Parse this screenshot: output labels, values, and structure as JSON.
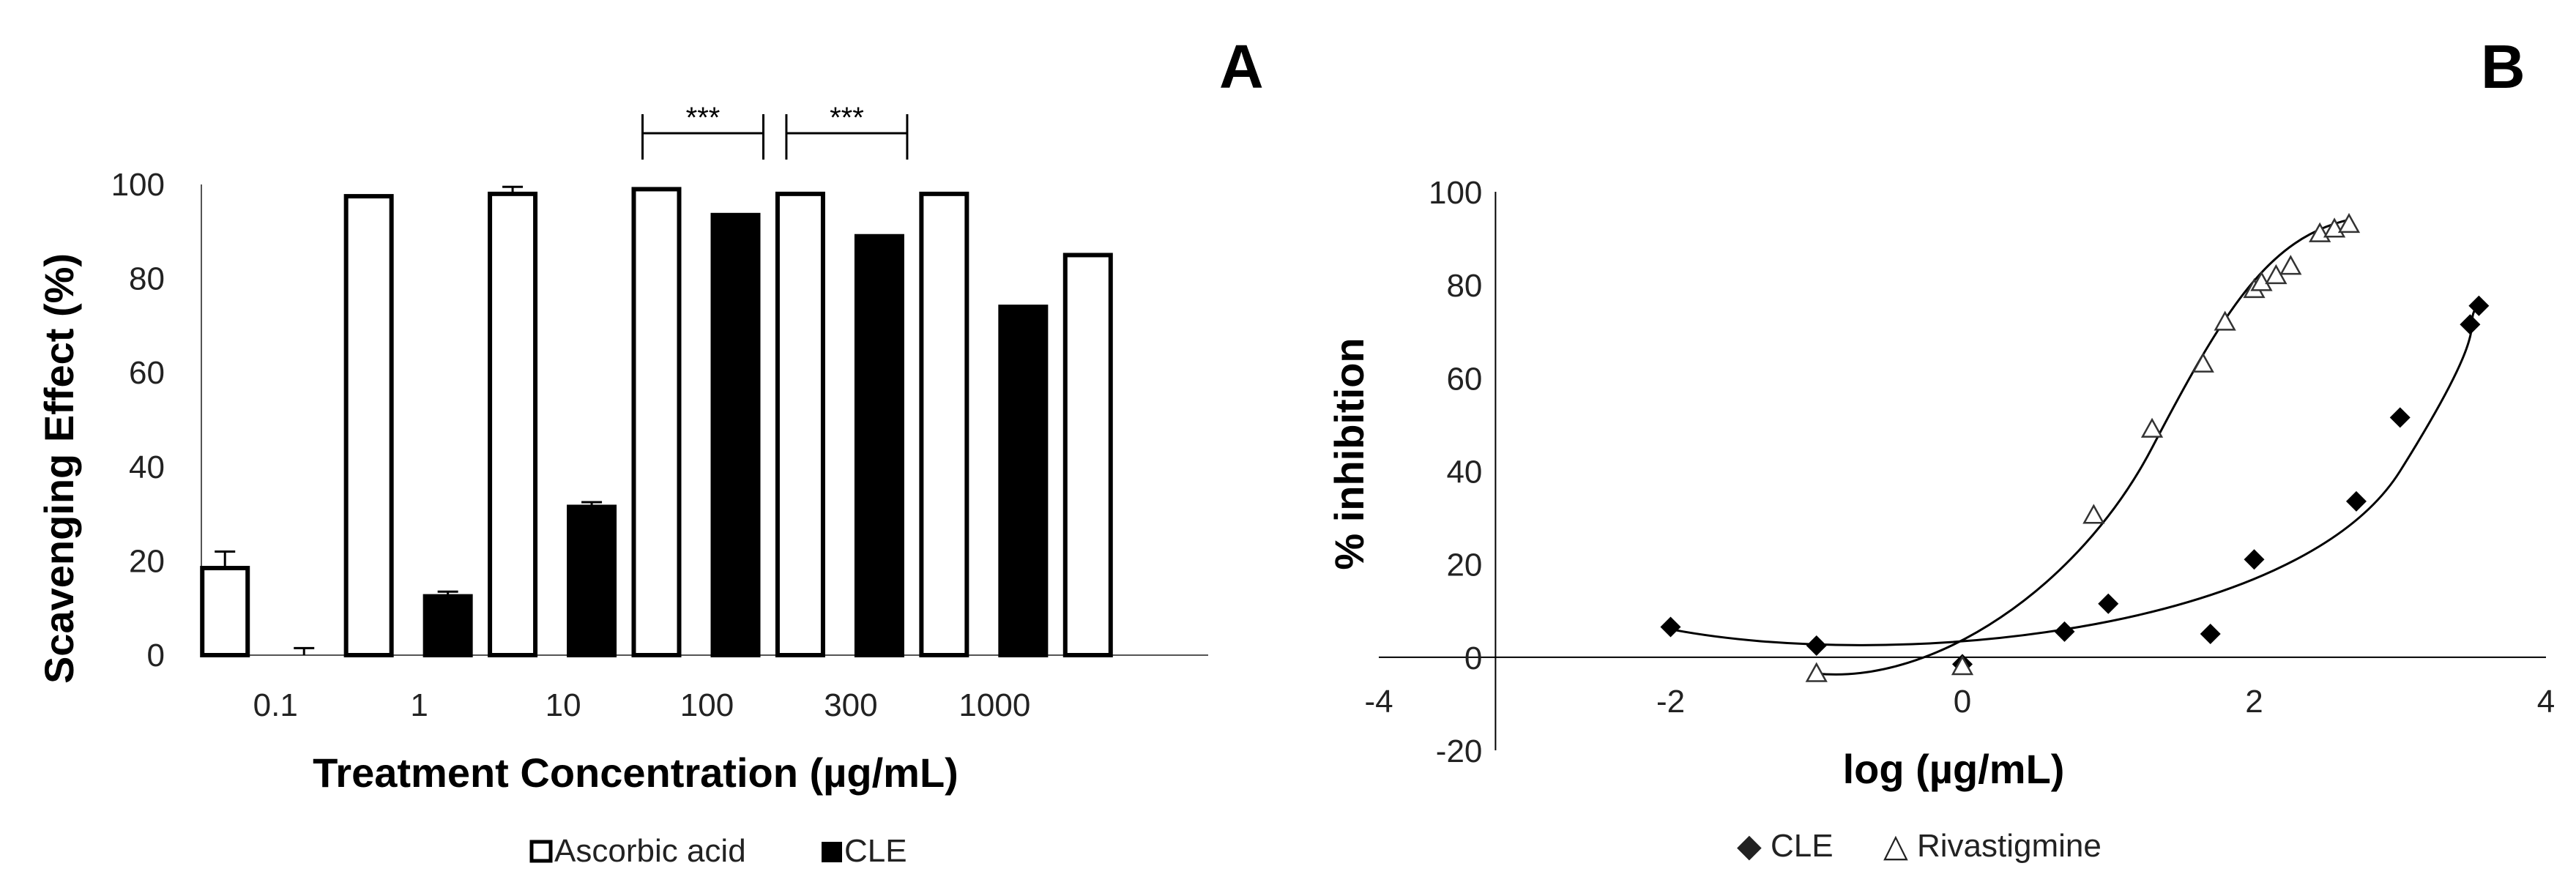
{
  "chart_data": [
    {
      "panel": "A",
      "type": "bar",
      "title": "",
      "xlabel": "Treatment Concentration (µg/mL)",
      "ylabel": "Scavenging Effect (%)",
      "ylim": [
        0,
        100
      ],
      "yticks": [
        "0",
        "20",
        "40",
        "60",
        "80",
        "100"
      ],
      "categories": [
        "0.1",
        "1",
        "10",
        "100",
        "300",
        "1000",
        ""
      ],
      "series": [
        {
          "name": "Ascorbic acid",
          "color": "#ffffff",
          "stroke": "#000000",
          "values": [
            18.5,
            97.5,
            98,
            99,
            98,
            98,
            85
          ],
          "errors": [
            3.5,
            0,
            1.5,
            0,
            0,
            0,
            0
          ]
        },
        {
          "name": "CLE",
          "color": "#000000",
          "stroke": "#000000",
          "values": [
            0,
            12.5,
            31.5,
            93.5,
            89,
            74,
            null
          ],
          "errors": [
            1.5,
            1,
            1,
            0,
            0,
            0,
            0
          ]
        }
      ],
      "significance": [
        {
          "category_index": 3,
          "label": "***"
        },
        {
          "category_index": 4,
          "label": "***"
        }
      ],
      "legend": [
        "Ascorbic acid",
        "CLE"
      ],
      "legend_placement": "bottom"
    },
    {
      "panel": "B",
      "type": "scatter",
      "title": "",
      "xlabel": "log (µg/mL)",
      "ylabel": "% inhibition",
      "xlim": [
        -4,
        4
      ],
      "ylim": [
        -20,
        100
      ],
      "xticks": [
        "-4",
        "-2",
        "0",
        "2",
        "4"
      ],
      "yticks": [
        "-20",
        "0",
        "20",
        "40",
        "60",
        "80",
        "100"
      ],
      "series": [
        {
          "name": "CLE",
          "marker": "diamond-filled",
          "x": [
            -2,
            -1,
            0,
            0.7,
            1,
            1.7,
            2,
            2.7,
            3,
            3.48,
            3.54
          ],
          "y": [
            6.5,
            2.5,
            -1.5,
            5.5,
            11.5,
            5,
            21,
            33.5,
            51.5,
            71.5,
            75.5
          ],
          "trend": {
            "x0": -2,
            "x1": 3.54,
            "y_start": 6,
            "y_end": 76
          }
        },
        {
          "name": "Rivastigmine",
          "marker": "triangle-open",
          "x": [
            -1,
            0,
            0.9,
            1.3,
            1.65,
            1.8,
            2,
            2.05,
            2.15,
            2.25,
            2.45,
            2.55,
            2.65
          ],
          "y": [
            -3.5,
            -2,
            30.5,
            49,
            63,
            72,
            79,
            80.5,
            82,
            84,
            91,
            92,
            93
          ],
          "trend": {
            "x0": -1,
            "x1": 2.65,
            "y_start": -3.5,
            "y_end": 94
          }
        }
      ],
      "legend": [
        "CLE",
        "Rivastigmine"
      ],
      "legend_markers": [
        "◆",
        "△"
      ],
      "legend_placement": "bottom"
    }
  ]
}
